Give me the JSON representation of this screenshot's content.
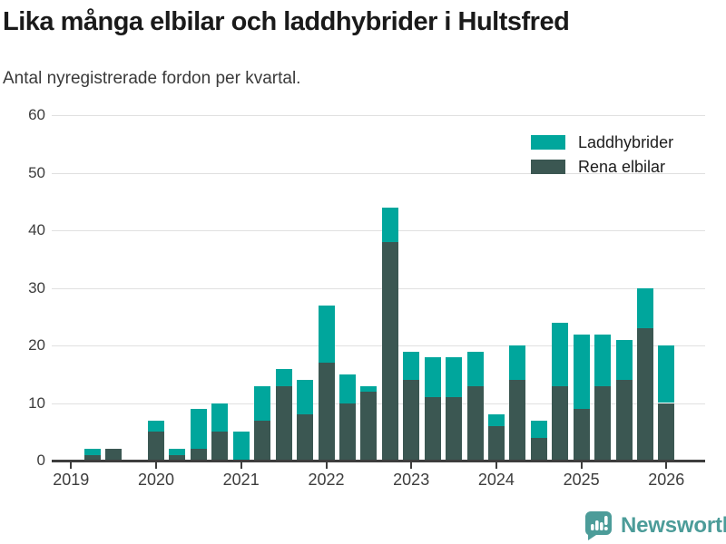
{
  "header": {
    "title": "Lika många elbilar och laddhybrider i Hultsfred",
    "subtitle": "Antal nyregistrerade fordon per kvartal."
  },
  "legend": {
    "items": [
      {
        "label": "Laddhybrider",
        "color": "#00a69c"
      },
      {
        "label": "Rena elbilar",
        "color": "#3b5752"
      }
    ]
  },
  "footer": {
    "brand": "Newsworthy",
    "brand_color": "#4c9c99",
    "icon": "bar-chart-speech-bubble"
  },
  "chart_data": {
    "type": "bar",
    "stacked": true,
    "title": "Lika många elbilar och laddhybrider i Hultsfred",
    "subtitle": "Antal nyregistrerade fordon per kvartal.",
    "x": [
      "2019 Q1",
      "2019 Q2",
      "2019 Q3",
      "2019 Q4",
      "2020 Q1",
      "2020 Q2",
      "2020 Q3",
      "2020 Q4",
      "2021 Q1",
      "2021 Q2",
      "2021 Q3",
      "2021 Q4",
      "2022 Q1",
      "2022 Q2",
      "2022 Q3",
      "2022 Q4",
      "2023 Q1",
      "2023 Q2",
      "2023 Q3",
      "2023 Q4",
      "2024 Q1",
      "2024 Q2",
      "2024 Q3",
      "2024 Q4",
      "2025 Q1",
      "2025 Q2",
      "2025 Q3",
      "2025 Q4",
      "2026 Q1"
    ],
    "series": [
      {
        "name": "Rena elbilar",
        "color": "#3b5752",
        "stack": "bottom",
        "values": [
          0,
          1,
          2,
          0,
          5,
          1,
          2,
          5,
          0,
          7,
          13,
          8,
          17,
          10,
          12,
          38,
          14,
          11,
          11,
          13,
          6,
          14,
          4,
          13,
          9,
          13,
          14,
          23,
          10
        ]
      },
      {
        "name": "Laddhybrider",
        "color": "#00a69c",
        "stack": "top",
        "values": [
          0,
          1,
          0,
          0,
          2,
          1,
          7,
          5,
          5,
          6,
          3,
          6,
          10,
          5,
          1,
          6,
          5,
          7,
          7,
          6,
          2,
          6,
          3,
          11,
          13,
          9,
          7,
          7,
          10
        ]
      }
    ],
    "totals": [
      0,
      2,
      2,
      0,
      7,
      2,
      9,
      10,
      5,
      13,
      16,
      14,
      27,
      15,
      13,
      44,
      19,
      18,
      18,
      19,
      8,
      20,
      7,
      24,
      22,
      22,
      21,
      30,
      20
    ],
    "x_tick_labels": [
      "2019",
      "2020",
      "2021",
      "2022",
      "2023",
      "2024",
      "2025",
      "2026"
    ],
    "x_ticks_every_n_quarters": 4,
    "y_ticks": [
      0,
      10,
      20,
      30,
      40,
      50,
      60
    ],
    "ylim": [
      0,
      60
    ],
    "grid": true,
    "legend_position": "top-right"
  }
}
